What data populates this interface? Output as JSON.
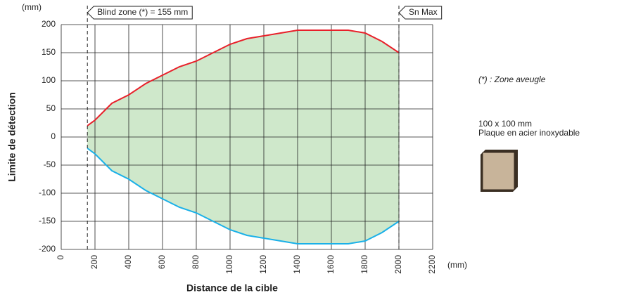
{
  "chart_data": {
    "type": "range-area",
    "y_unit": "(mm)",
    "x_unit": "(mm)",
    "ylabel": "Limite de détection",
    "xlabel": "Distance de la cible",
    "x": [
      155,
      200,
      300,
      400,
      500,
      600,
      700,
      800,
      900,
      1000,
      1100,
      1200,
      1300,
      1400,
      1500,
      1600,
      1700,
      1800,
      1900,
      2000
    ],
    "series": [
      {
        "color": "#e8202a",
        "values": [
          20,
          30,
          60,
          75,
          95,
          110,
          125,
          135,
          150,
          165,
          175,
          180,
          185,
          190,
          190,
          190,
          190,
          185,
          170,
          150
        ]
      },
      {
        "color": "#1ab0e8",
        "values": [
          -20,
          -30,
          -60,
          -75,
          -95,
          -110,
          -125,
          -135,
          -150,
          -165,
          -175,
          -180,
          -185,
          -190,
          -190,
          -190,
          -190,
          -185,
          -170,
          -150
        ]
      }
    ],
    "fill_color": "#cfe8cb",
    "xlim": [
      0,
      2200
    ],
    "xticks": [
      0,
      200,
      400,
      600,
      800,
      1000,
      1200,
      1400,
      1600,
      1800,
      2000,
      2200
    ],
    "ylim": [
      -200,
      200
    ],
    "yticks": [
      200,
      150,
      100,
      50,
      0,
      -50,
      -100,
      -150,
      -200
    ],
    "grid": true,
    "markers": [
      {
        "x": 155,
        "label": "Blind zone (*) = 155 mm"
      },
      {
        "x": 2000,
        "label": "Sn Max"
      }
    ]
  },
  "notes": {
    "blind": "(*) : Zone aveugle",
    "size": "100 x 100 mm",
    "material": "Plaque en acier inoxydable"
  }
}
